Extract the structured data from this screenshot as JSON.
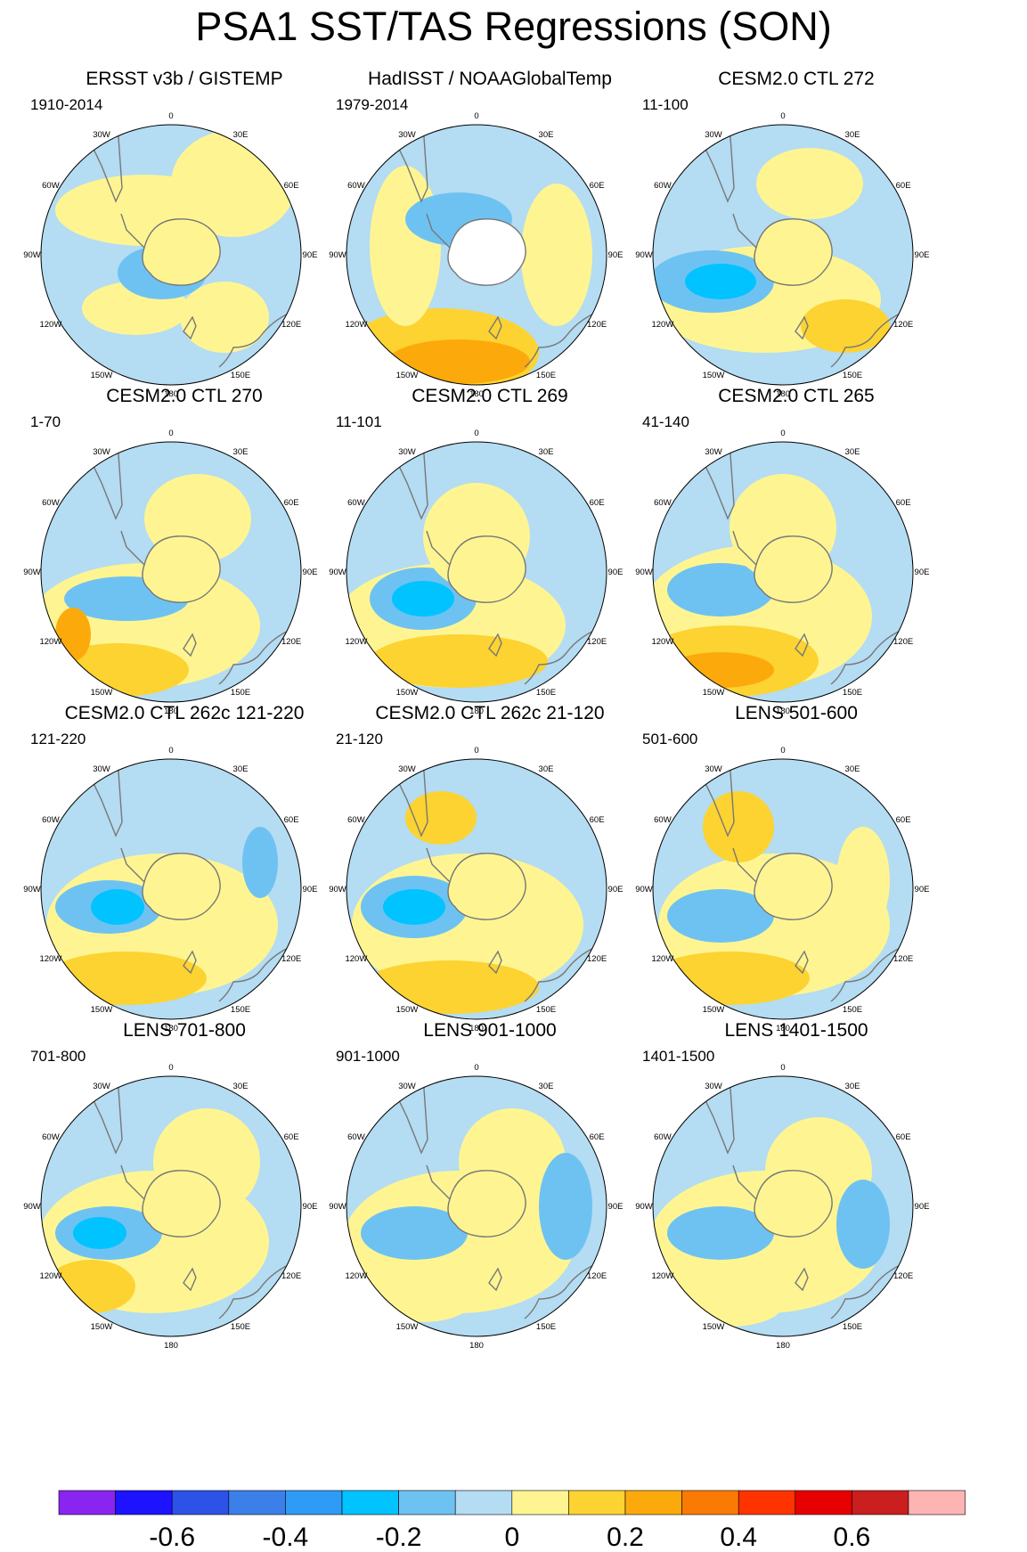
{
  "title": "PSA1 SST/TAS Regressions (SON)",
  "palette": [
    "#8a24f0",
    "#1d13ff",
    "#2d52e8",
    "#3b7fe8",
    "#2e9cf6",
    "#00c3ff",
    "#6ec2f2",
    "#b4dcf2",
    "#fef592",
    "#fcd331",
    "#fcaa0b",
    "#fb7a04",
    "#ff3300",
    "#e60000",
    "#cb1e1e",
    "#ffb4b4"
  ],
  "colorbar": {
    "labels": [
      "-0.6",
      "-0.4",
      "-0.2",
      "0",
      "0.2",
      "0.4",
      "0.6"
    ]
  },
  "lon_labels": [
    "0",
    "30E",
    "60E",
    "90E",
    "120E",
    "150E",
    "180",
    "150W",
    "120W",
    "90W",
    "60W",
    "30W"
  ],
  "panels": [
    {
      "title": "ERSST v3b / GISTEMP",
      "period": "1910-2014"
    },
    {
      "title": "HadISST / NOAAGlobalTemp",
      "period": "1979-2014"
    },
    {
      "title": "CESM2.0 CTL 272",
      "period": "11-100"
    },
    {
      "title": "CESM2.0 CTL 270",
      "period": "1-70"
    },
    {
      "title": "CESM2.0 CTL 269",
      "period": "11-101"
    },
    {
      "title": "CESM2.0 CTL 265",
      "period": "41-140"
    },
    {
      "title": "CESM2.0 CTL 262c 121-220",
      "period": "121-220"
    },
    {
      "title": "CESM2.0 CTL 262c 21-120",
      "period": "21-120"
    },
    {
      "title": "LENS 501-600",
      "period": "501-600"
    },
    {
      "title": "LENS 701-800",
      "period": "701-800"
    },
    {
      "title": "LENS 901-1000",
      "period": "901-1000"
    },
    {
      "title": "LENS 1401-1500",
      "period": "1401-1500"
    }
  ]
}
